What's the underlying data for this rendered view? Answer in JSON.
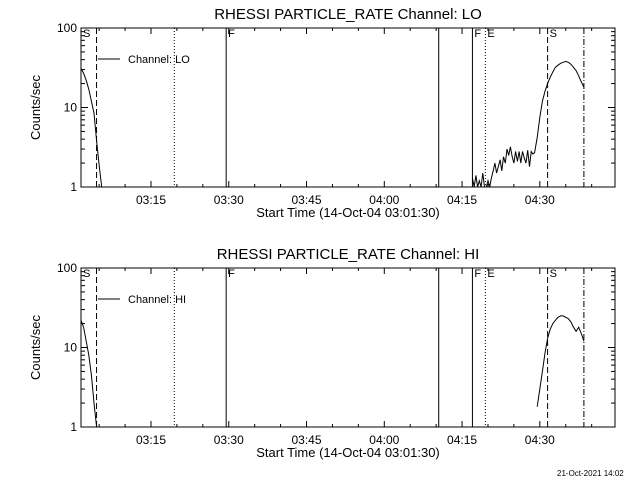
{
  "footer": {
    "timestamp": "21-Oct-2021 14:02"
  },
  "chart_data": [
    {
      "type": "line",
      "title": "RHESSI PARTICLE_RATE Channel: LO",
      "xlabel": "Start Time (14-Oct-04 03:01:30)",
      "ylabel": "Counts/sec",
      "yscale": "log",
      "ylim": [
        1,
        100
      ],
      "xlim": [
        "03:01:30",
        "04:44:30"
      ],
      "x_ticks": [
        "03:15",
        "03:30",
        "03:45",
        "04:00",
        "04:15",
        "04:30"
      ],
      "y_ticks": [
        "1",
        "10",
        "100"
      ],
      "legend": {
        "placement": "top-left",
        "entries": [
          "Channel: LO"
        ]
      },
      "grid": false,
      "color": "#000000",
      "markers": [
        {
          "label": "S",
          "time": "03:01:30",
          "style": "none"
        },
        {
          "label": "",
          "time": "03:04:30",
          "style": "dashed"
        },
        {
          "label": "",
          "time": "03:19:30",
          "style": "dotted"
        },
        {
          "label": "F",
          "time": "03:29:30",
          "style": "solid"
        },
        {
          "label": "",
          "time": "04:10:30",
          "style": "solid"
        },
        {
          "label": "F",
          "time": "04:17:00",
          "style": "solid"
        },
        {
          "label": "E",
          "time": "04:19:30",
          "style": "dotted"
        },
        {
          "label": "S",
          "time": "04:31:30",
          "style": "dashed"
        },
        {
          "label": "",
          "time": "04:38:30",
          "style": "dashdot"
        }
      ],
      "series": [
        {
          "name": "Channel: LO",
          "segments": [
            {
              "x": [
                "03:01:30",
                "03:02:00",
                "03:02:30",
                "03:03:00",
                "03:03:30",
                "03:04:00",
                "03:04:30",
                "03:05:00",
                "03:05:30"
              ],
              "y": [
                31,
                27,
                22,
                17,
                12,
                8.5,
                3.8,
                1.9,
                1.0
              ]
            },
            {
              "x": [
                "04:17:00",
                "04:17:20",
                "04:17:40",
                "04:18:00",
                "04:18:20",
                "04:18:40",
                "04:19:00",
                "04:19:20",
                "04:19:40",
                "04:20:00",
                "04:20:20",
                "04:20:40",
                "04:21:00",
                "04:21:20",
                "04:21:40",
                "04:22:00",
                "04:22:20",
                "04:22:40",
                "04:23:00",
                "04:23:20",
                "04:23:40",
                "04:24:00",
                "04:24:20",
                "04:24:40",
                "04:25:00",
                "04:25:20",
                "04:25:40",
                "04:26:00",
                "04:26:20",
                "04:26:40",
                "04:27:00",
                "04:27:20",
                "04:27:40",
                "04:28:00",
                "04:28:20",
                "04:28:40",
                "04:29:00",
                "04:29:30",
                "04:30:00",
                "04:30:30",
                "04:31:00",
                "04:31:30",
                "04:32:00",
                "04:32:30",
                "04:33:00",
                "04:33:30",
                "04:34:00",
                "04:34:30",
                "04:35:00",
                "04:35:30",
                "04:36:00",
                "04:36:30",
                "04:37:00",
                "04:37:30",
                "04:38:00",
                "04:38:30"
              ],
              "y": [
                1.3,
                1.0,
                1.4,
                1.0,
                1.2,
                1.0,
                1.5,
                1.0,
                1.0,
                1.2,
                1.0,
                1.3,
                1.6,
                2.0,
                1.5,
                1.8,
                2.2,
                1.6,
                2.4,
                2.0,
                3.0,
                2.5,
                3.2,
                2.4,
                2.0,
                2.8,
                2.1,
                2.8,
                2.0,
                2.8,
                2.3,
                2.0,
                2.9,
                1.8,
                2.8,
                2.6,
                2.7,
                4.2,
                7.5,
                12,
                16,
                20,
                24,
                28,
                32,
                34,
                36,
                37,
                38,
                37,
                35,
                32,
                29,
                25,
                21,
                18
              ]
            }
          ]
        }
      ]
    },
    {
      "type": "line",
      "title": "RHESSI PARTICLE_RATE Channel: HI",
      "xlabel": "Start Time (14-Oct-04 03:01:30)",
      "ylabel": "Counts/sec",
      "yscale": "log",
      "ylim": [
        1,
        100
      ],
      "xlim": [
        "03:01:30",
        "04:44:30"
      ],
      "x_ticks": [
        "03:15",
        "03:30",
        "03:45",
        "04:00",
        "04:15",
        "04:30"
      ],
      "y_ticks": [
        "1",
        "10",
        "100"
      ],
      "legend": {
        "placement": "top-left",
        "entries": [
          "Channel: HI"
        ]
      },
      "grid": false,
      "color": "#000000",
      "markers": [
        {
          "label": "S",
          "time": "03:01:30",
          "style": "none"
        },
        {
          "label": "",
          "time": "03:04:30",
          "style": "dashed"
        },
        {
          "label": "",
          "time": "03:19:30",
          "style": "dotted"
        },
        {
          "label": "F",
          "time": "03:29:30",
          "style": "solid"
        },
        {
          "label": "",
          "time": "04:10:30",
          "style": "solid"
        },
        {
          "label": "F",
          "time": "04:17:00",
          "style": "solid"
        },
        {
          "label": "E",
          "time": "04:19:30",
          "style": "dotted"
        },
        {
          "label": "S",
          "time": "04:31:30",
          "style": "dashed"
        },
        {
          "label": "",
          "time": "04:38:30",
          "style": "dashdot"
        }
      ],
      "series": [
        {
          "name": "Channel: HI",
          "segments": [
            {
              "x": [
                "03:01:30",
                "03:02:00",
                "03:02:30",
                "03:03:00",
                "03:03:30",
                "03:04:00",
                "03:04:30"
              ],
              "y": [
                22,
                18,
                12,
                8,
                4.5,
                2.0,
                1.0
              ]
            },
            {
              "x": [
                "04:29:30",
                "04:30:00",
                "04:30:30",
                "04:31:00",
                "04:31:30",
                "04:32:00",
                "04:32:30",
                "04:33:00",
                "04:33:30",
                "04:34:00",
                "04:34:30",
                "04:35:00",
                "04:35:30",
                "04:36:00",
                "04:36:30",
                "04:37:00",
                "04:37:30",
                "04:38:00",
                "04:38:30"
              ],
              "y": [
                1.8,
                3.0,
                5.0,
                8.5,
                13,
                17,
                20,
                22,
                24,
                25,
                25,
                24,
                23,
                21,
                18,
                16,
                18,
                15,
                12
              ]
            }
          ]
        }
      ]
    }
  ]
}
